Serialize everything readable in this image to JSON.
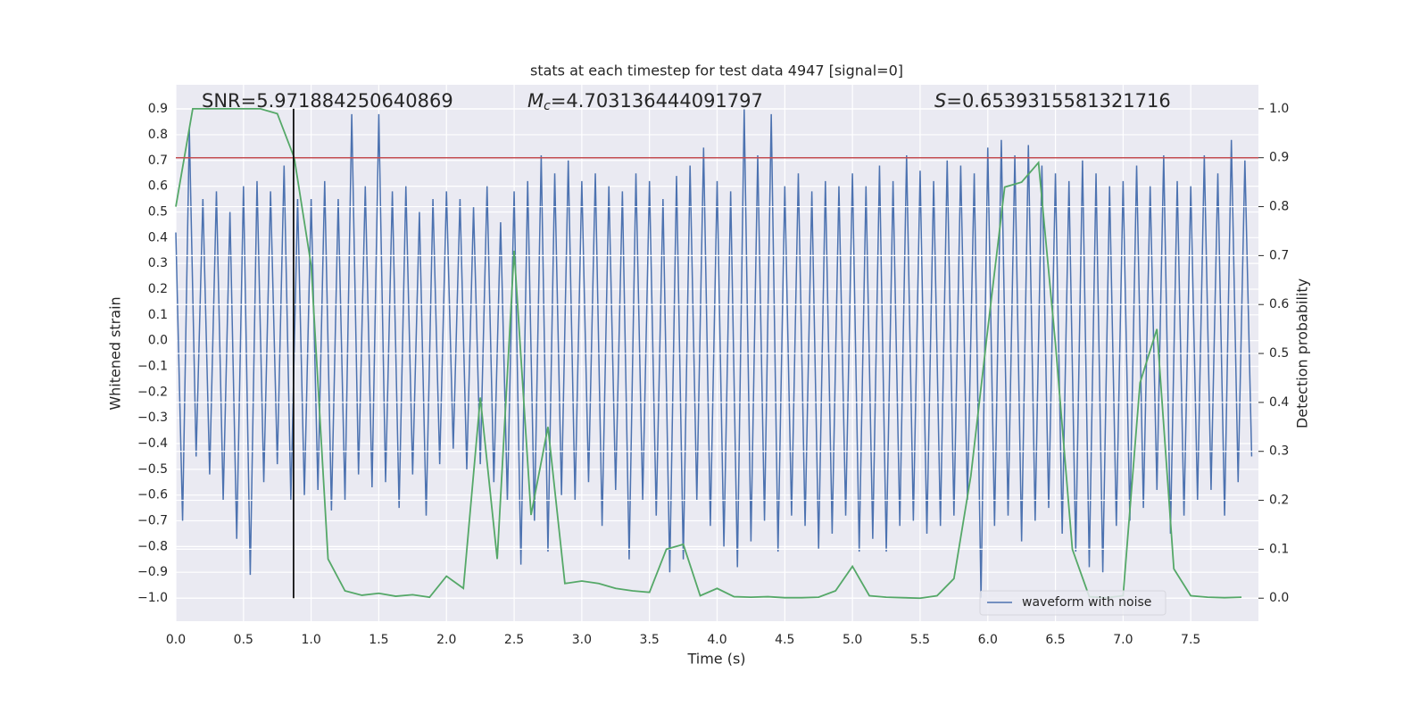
{
  "chart_data": {
    "type": "line",
    "title": "stats at each timestep for test data 4947 [signal=0]",
    "annotations": [
      {
        "text": "SNR=5.971884250640869"
      },
      {
        "symbol": "M",
        "subscript": "c",
        "text": "=4.703136444091797"
      },
      {
        "symbol": "S",
        "text": "=0.6539315581321716"
      }
    ],
    "xlabel": "Time (s)",
    "ylabel": "Whitened strain",
    "y2label": "Detection probability",
    "xlim": [
      0,
      8
    ],
    "ylim": [
      -1.09,
      0.994
    ],
    "y2lim": [
      -0.047,
      1.049
    ],
    "xticks": [
      {
        "value": 0,
        "label": "0.0"
      },
      0.5,
      {
        "value": 1,
        "label": "1.0"
      },
      1.5,
      {
        "value": 2,
        "label": "2.0"
      },
      2.5,
      {
        "value": 3,
        "label": "3.0"
      },
      3.5,
      {
        "value": 4,
        "label": "4.0"
      },
      4.5,
      {
        "value": 5,
        "label": "5.0"
      },
      5.5,
      {
        "value": 6,
        "label": "6.0"
      },
      6.5,
      {
        "value": 7,
        "label": "7.0"
      },
      7.5
    ],
    "yticks": [
      {
        "value": -1,
        "label": "−1.0"
      },
      {
        "value": -0.9,
        "label": "−0.9"
      },
      {
        "value": -0.8,
        "label": "−0.8"
      },
      {
        "value": -0.7,
        "label": "−0.7"
      },
      {
        "value": -0.6,
        "label": "−0.6"
      },
      {
        "value": -0.5,
        "label": "−0.5"
      },
      {
        "value": -0.4,
        "label": "−0.4"
      },
      {
        "value": -0.3,
        "label": "−0.3"
      },
      {
        "value": -0.2,
        "label": "−0.2"
      },
      {
        "value": -0.1,
        "label": "−0.1"
      },
      {
        "value": 0,
        "label": "0.0"
      },
      0.1,
      0.2,
      0.3,
      0.4,
      0.5,
      0.6,
      0.7,
      0.8,
      0.9
    ],
    "y2ticks": [
      {
        "value": 0,
        "label": "0.0"
      },
      0.1,
      0.2,
      0.3,
      0.4,
      0.5,
      0.6,
      0.7,
      0.8,
      0.9,
      {
        "value": 1,
        "label": "1.0"
      }
    ],
    "grid": true,
    "y2grid": true,
    "legend": "lower right",
    "threshold": {
      "value": 0.9,
      "axis": "y2",
      "color": "#c44e52"
    },
    "vline": {
      "x": 0.87,
      "ymin": 0,
      "ymax": 1,
      "axis": "y2",
      "color": "#111111"
    },
    "series": [
      {
        "name": "waveform with noise",
        "color": "#4c72b0",
        "x": [
          0,
          0.05,
          0.1,
          0.15,
          0.2,
          0.25,
          0.3,
          0.35,
          0.4,
          0.45,
          0.5,
          0.55,
          0.6,
          0.65,
          0.7,
          0.75,
          0.8,
          0.85,
          0.9,
          0.95,
          1,
          1.05,
          1.1,
          1.15,
          1.2,
          1.25,
          1.3,
          1.35,
          1.4,
          1.45,
          1.5,
          1.55,
          1.6,
          1.65,
          1.7,
          1.75,
          1.8,
          1.85,
          1.9,
          1.95,
          2,
          2.05,
          2.1,
          2.15,
          2.2,
          2.25,
          2.3,
          2.35,
          2.4,
          2.45,
          2.5,
          2.55,
          2.6,
          2.65,
          2.7,
          2.75,
          2.8,
          2.85,
          2.9,
          2.95,
          3,
          3.05,
          3.1,
          3.15,
          3.2,
          3.25,
          3.3,
          3.35,
          3.4,
          3.45,
          3.5,
          3.55,
          3.6,
          3.65,
          3.7,
          3.75,
          3.8,
          3.85,
          3.9,
          3.95,
          4,
          4.05,
          4.1,
          4.15,
          4.2,
          4.25,
          4.3,
          4.35,
          4.4,
          4.45,
          4.5,
          4.55,
          4.6,
          4.65,
          4.7,
          4.75,
          4.8,
          4.85,
          4.9,
          4.95,
          5,
          5.05,
          5.1,
          5.15,
          5.2,
          5.25,
          5.3,
          5.35,
          5.4,
          5.45,
          5.5,
          5.55,
          5.6,
          5.65,
          5.7,
          5.75,
          5.8,
          5.85,
          5.9,
          5.95,
          6,
          6.05,
          6.1,
          6.15,
          6.2,
          6.25,
          6.3,
          6.35,
          6.4,
          6.45,
          6.5,
          6.55,
          6.6,
          6.65,
          6.7,
          6.75,
          6.8,
          6.85,
          6.9,
          6.95,
          7,
          7.05,
          7.1,
          7.15,
          7.2,
          7.25,
          7.3,
          7.35,
          7.4,
          7.45,
          7.5,
          7.55,
          7.6,
          7.65,
          7.7,
          7.75,
          7.8,
          7.85,
          7.9,
          7.95
        ],
        "values": [
          0.42,
          -0.7,
          0.82,
          -0.45,
          0.55,
          -0.52,
          0.58,
          -0.62,
          0.5,
          -0.77,
          0.6,
          -0.91,
          0.62,
          -0.55,
          0.58,
          -0.48,
          0.68,
          -0.62,
          0.55,
          -0.6,
          0.55,
          -0.58,
          0.62,
          -0.66,
          0.55,
          -0.62,
          0.88,
          -0.52,
          0.6,
          -0.57,
          0.88,
          -0.55,
          0.58,
          -0.65,
          0.6,
          -0.52,
          0.5,
          -0.68,
          0.55,
          -0.48,
          0.58,
          -0.42,
          0.55,
          -0.5,
          0.52,
          -0.48,
          0.6,
          -0.55,
          0.46,
          -0.62,
          0.58,
          -0.87,
          0.62,
          -0.7,
          0.72,
          -0.82,
          0.65,
          -0.6,
          0.7,
          -0.62,
          0.62,
          -0.55,
          0.65,
          -0.72,
          0.6,
          -0.58,
          0.58,
          -0.85,
          0.65,
          -0.62,
          0.62,
          -0.68,
          0.55,
          -0.9,
          0.64,
          -0.85,
          0.68,
          -0.62,
          0.75,
          -0.72,
          0.62,
          -0.8,
          0.58,
          -0.88,
          0.9,
          -0.78,
          0.72,
          -0.7,
          0.88,
          -0.82,
          0.6,
          -0.68,
          0.65,
          -0.72,
          0.58,
          -0.81,
          0.62,
          -0.75,
          0.6,
          -0.68,
          0.65,
          -0.82,
          0.6,
          -0.77,
          0.68,
          -0.82,
          0.62,
          -0.72,
          0.72,
          -0.7,
          0.66,
          -0.75,
          0.62,
          -0.72,
          0.7,
          -0.68,
          0.68,
          -0.62,
          0.65,
          -1.0,
          0.75,
          -0.72,
          0.78,
          -0.68,
          0.72,
          -0.78,
          0.76,
          -0.7,
          0.68,
          -0.65,
          0.65,
          -0.75,
          0.62,
          -0.82,
          0.7,
          -0.88,
          0.65,
          -0.9,
          0.6,
          -0.72,
          0.62,
          -0.7,
          0.68,
          -0.65,
          0.6,
          -0.58,
          0.72,
          -0.75,
          0.62,
          -0.68,
          0.6,
          -0.62,
          0.72,
          -0.58,
          0.65,
          -0.68,
          0.78,
          -0.55,
          0.7,
          -0.45
        ]
      },
      {
        "axis": "y2",
        "color": "#55a868",
        "x": [
          0,
          0.125,
          0.25,
          0.375,
          0.5,
          0.625,
          0.75,
          0.875,
          1,
          1.125,
          1.25,
          1.375,
          1.5,
          1.625,
          1.75,
          1.875,
          2,
          2.125,
          2.25,
          2.375,
          2.5,
          2.625,
          2.75,
          2.875,
          3,
          3.125,
          3.25,
          3.375,
          3.5,
          3.625,
          3.75,
          3.875,
          4,
          4.125,
          4.25,
          4.375,
          4.5,
          4.625,
          4.75,
          4.875,
          5,
          5.125,
          5.25,
          5.375,
          5.5,
          5.625,
          5.75,
          5.875,
          6,
          6.125,
          6.25,
          6.375,
          6.5,
          6.625,
          6.75,
          6.875,
          7,
          7.125,
          7.25,
          7.375,
          7.5,
          7.625,
          7.75,
          7.875
        ],
        "values": [
          0.8,
          1.0,
          1.0,
          1.0,
          1.0,
          1.0,
          0.99,
          0.9,
          0.68,
          0.08,
          0.015,
          0.006,
          0.01,
          0.004,
          0.007,
          0.002,
          0.045,
          0.02,
          0.41,
          0.08,
          0.71,
          0.17,
          0.35,
          0.03,
          0.035,
          0.03,
          0.02,
          0.015,
          0.012,
          0.1,
          0.11,
          0.005,
          0.02,
          0.003,
          0.002,
          0.003,
          0.001,
          0.001,
          0.002,
          0.015,
          0.065,
          0.005,
          0.002,
          0.001,
          0.0,
          0.005,
          0.04,
          0.25,
          0.55,
          0.84,
          0.85,
          0.89,
          0.52,
          0.1,
          0.003,
          0.001,
          0.005,
          0.44,
          0.55,
          0.06,
          0.005,
          0.002,
          0.001,
          0.002
        ]
      }
    ]
  }
}
